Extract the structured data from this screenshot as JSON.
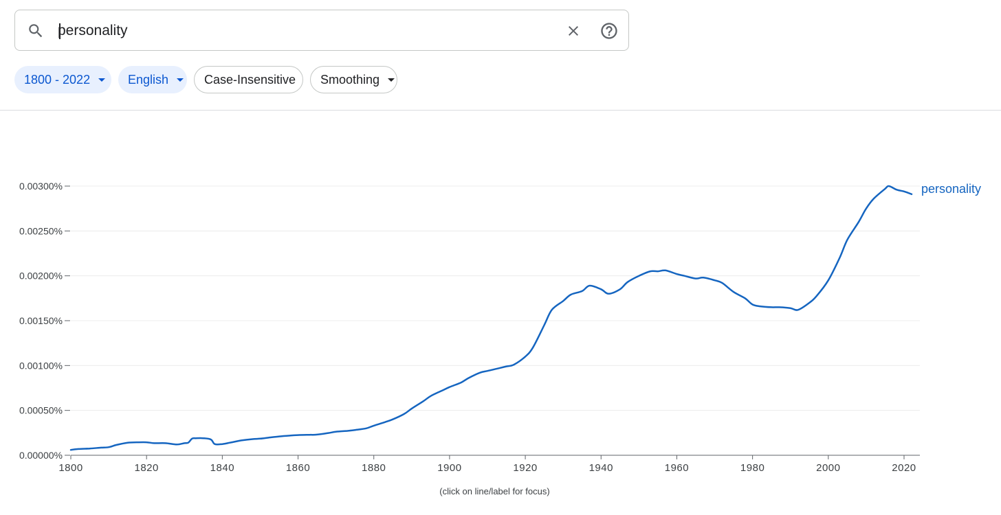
{
  "search": {
    "value": "personality",
    "icon": "search-icon",
    "clear_icon": "close-icon",
    "help_icon": "help-icon"
  },
  "filters": {
    "year_range": "1800 - 2022",
    "language": "English",
    "case": "Case-Insensitive",
    "smoothing": "Smoothing"
  },
  "colors": {
    "series": "#1565c0",
    "chip_bg": "#e8f0fe",
    "chip_text": "#0b57d0"
  },
  "chart_data": {
    "type": "line",
    "title": "",
    "xlabel": "(click on line/label for focus)",
    "ylabel": "",
    "xlim": [
      1800,
      2022
    ],
    "ylim": [
      0,
      0.003
    ],
    "x_ticks": [
      1800,
      1820,
      1840,
      1860,
      1880,
      1900,
      1920,
      1940,
      1960,
      1980,
      2000,
      2020
    ],
    "y_ticks": [
      {
        "value": 0.0,
        "label": "0.00000%"
      },
      {
        "value": 0.0005,
        "label": "0.00050%"
      },
      {
        "value": 0.001,
        "label": "0.00100%"
      },
      {
        "value": 0.0015,
        "label": "0.00150%"
      },
      {
        "value": 0.002,
        "label": "0.00200%"
      },
      {
        "value": 0.0025,
        "label": "0.00250%"
      },
      {
        "value": 0.003,
        "label": "0.00300%"
      }
    ],
    "grid": true,
    "legend": "inline-end",
    "series": [
      {
        "name": "personality",
        "x": [
          1800,
          1802,
          1805,
          1808,
          1810,
          1812,
          1815,
          1818,
          1820,
          1822,
          1825,
          1828,
          1830,
          1831,
          1832,
          1833,
          1835,
          1837,
          1838,
          1840,
          1842,
          1845,
          1848,
          1850,
          1852,
          1855,
          1858,
          1860,
          1863,
          1865,
          1868,
          1870,
          1873,
          1875,
          1878,
          1880,
          1883,
          1885,
          1888,
          1890,
          1893,
          1895,
          1898,
          1900,
          1903,
          1905,
          1908,
          1910,
          1913,
          1915,
          1917,
          1920,
          1922,
          1925,
          1927,
          1930,
          1932,
          1935,
          1937,
          1940,
          1942,
          1945,
          1947,
          1950,
          1953,
          1955,
          1957,
          1960,
          1962,
          1965,
          1967,
          1970,
          1972,
          1975,
          1978,
          1980,
          1982,
          1985,
          1987,
          1990,
          1992,
          1995,
          1997,
          2000,
          2003,
          2005,
          2008,
          2010,
          2012,
          2015,
          2016,
          2018,
          2020,
          2022
        ],
        "values": [
          6e-05,
          7e-05,
          7.5e-05,
          8.5e-05,
          9e-05,
          0.000115,
          0.00014,
          0.000145,
          0.000145,
          0.000135,
          0.000135,
          0.00012,
          0.000135,
          0.00014,
          0.000185,
          0.00019,
          0.00019,
          0.000175,
          0.000125,
          0.000125,
          0.00014,
          0.000165,
          0.00018,
          0.000185,
          0.000195,
          0.00021,
          0.00022,
          0.000225,
          0.000228,
          0.00023,
          0.000248,
          0.000262,
          0.000272,
          0.000282,
          0.0003,
          0.00033,
          0.00037,
          0.0004,
          0.00046,
          0.00052,
          0.0006,
          0.00066,
          0.00072,
          0.00076,
          0.00081,
          0.00086,
          0.00092,
          0.00094,
          0.00097,
          0.00099,
          0.00101,
          0.0011,
          0.0012,
          0.00145,
          0.00162,
          0.00172,
          0.00179,
          0.00183,
          0.00189,
          0.00185,
          0.0018,
          0.00185,
          0.00193,
          0.002,
          0.00205,
          0.00205,
          0.00206,
          0.00202,
          0.002,
          0.00197,
          0.00198,
          0.00195,
          0.00192,
          0.00182,
          0.00175,
          0.00168,
          0.00166,
          0.00165,
          0.00165,
          0.00164,
          0.00162,
          0.0017,
          0.00178,
          0.00195,
          0.0022,
          0.0024,
          0.0026,
          0.00275,
          0.00286,
          0.00297,
          0.003,
          0.00296,
          0.00294,
          0.00291
        ]
      }
    ]
  }
}
